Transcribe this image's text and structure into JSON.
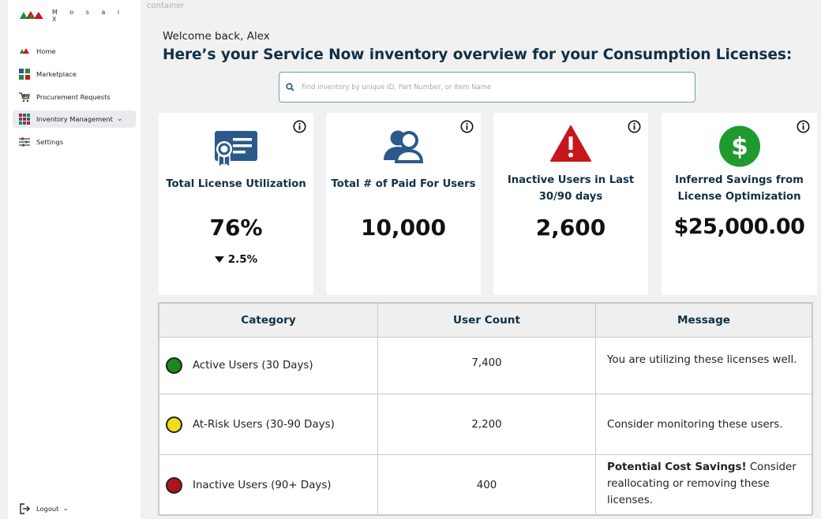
{
  "app": {
    "brand_name": "M o s a i X",
    "container_label": "container"
  },
  "sidebar": {
    "items": [
      {
        "label": "Home",
        "icon": "mosaix-home-icon"
      },
      {
        "label": "Marketplace",
        "icon": "marketplace-icon"
      },
      {
        "label": "Procurement Requests",
        "icon": "cart-icon"
      },
      {
        "label": "Inventory Management",
        "icon": "inventory-grid-icon",
        "active": true,
        "chevron": "⌄"
      },
      {
        "label": "Settings",
        "icon": "sliders-icon"
      }
    ],
    "logout": {
      "label": "Logout",
      "icon": "logout-icon",
      "chevron": "⌄"
    }
  },
  "header": {
    "welcome": "Welcome back, Alex",
    "headline": "Here’s your Service Now inventory overview for your Consumption Licenses:"
  },
  "search": {
    "placeholder": "Find inventory by unique ID, Part Number, or Item Name",
    "value": ""
  },
  "cards": [
    {
      "icon": "license-certificate-icon",
      "title": "Total License Utilization",
      "value": "76%",
      "trend": "2.5%",
      "trend_direction": "down"
    },
    {
      "icon": "users-icon",
      "title": "Total # of Paid For Users",
      "value": "10,000"
    },
    {
      "icon": "warning-icon",
      "title_line1": "Inactive Users in Last",
      "title_line2": "30/90 days",
      "value": "2,600"
    },
    {
      "icon": "dollar-icon",
      "title_line1": "Inferred Savings from",
      "title_line2": "License Optimization",
      "value": "$25,000.00"
    }
  ],
  "table": {
    "headers": [
      "Category",
      "User Count",
      "Message"
    ],
    "rows": [
      {
        "category": "Active Users (30 Days)",
        "count": "7,400",
        "message": "You are utilizing these licenses well.",
        "status_color": "#1a8a1a"
      },
      {
        "category": "At-Risk Users (30-90 Days)",
        "count": "2,200",
        "message": "Consider monitoring these users.",
        "status_color": "#f2dc1c"
      },
      {
        "category": "Inactive Users (90+ Days)",
        "count": "400",
        "message_bold": "Potential Cost Savings!",
        "message_rest": " Consider reallocating or removing these licenses.",
        "status_color": "#b0141a"
      }
    ]
  },
  "colors": {
    "headline": "#123046",
    "accent_blue": "#2b5a8a",
    "warning_red": "#c8161d",
    "dollar_green": "#1f9a2e"
  }
}
